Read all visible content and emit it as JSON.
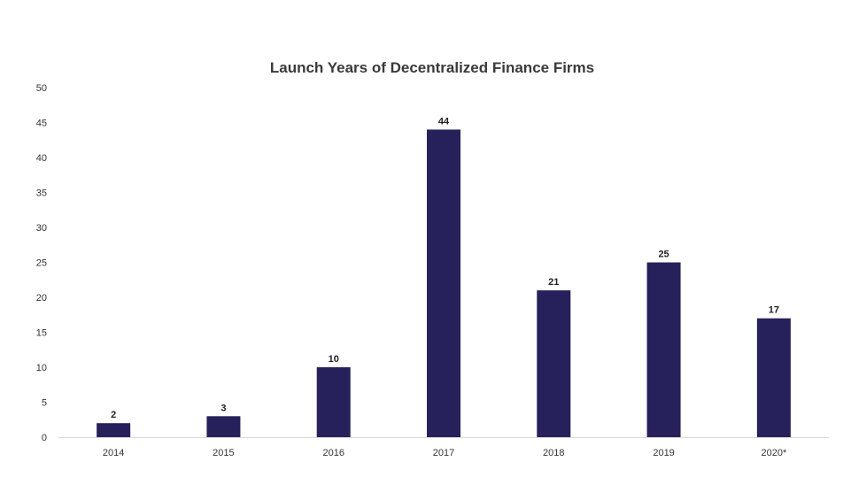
{
  "chart_data": {
    "type": "bar",
    "title": "Launch Years of Decentralized Finance Firms",
    "categories": [
      "2014",
      "2015",
      "2016",
      "2017",
      "2018",
      "2019",
      "2020*"
    ],
    "values": [
      2,
      3,
      10,
      44,
      21,
      25,
      17
    ],
    "data_labels": [
      "2",
      "3",
      "10",
      "44",
      "21",
      "25",
      "17"
    ],
    "ylim": [
      0,
      50
    ],
    "y_ticks": [
      0,
      5,
      10,
      15,
      20,
      25,
      30,
      35,
      40,
      45,
      50
    ],
    "y_tick_labels": [
      "0",
      "5",
      "10",
      "15",
      "20",
      "25",
      "30",
      "35",
      "40",
      "45",
      "50"
    ],
    "grid": false,
    "legend": "none",
    "xlabel": "",
    "ylabel": "",
    "colors": {
      "bar": "#26215a",
      "axis": "#d9d9d9"
    }
  }
}
